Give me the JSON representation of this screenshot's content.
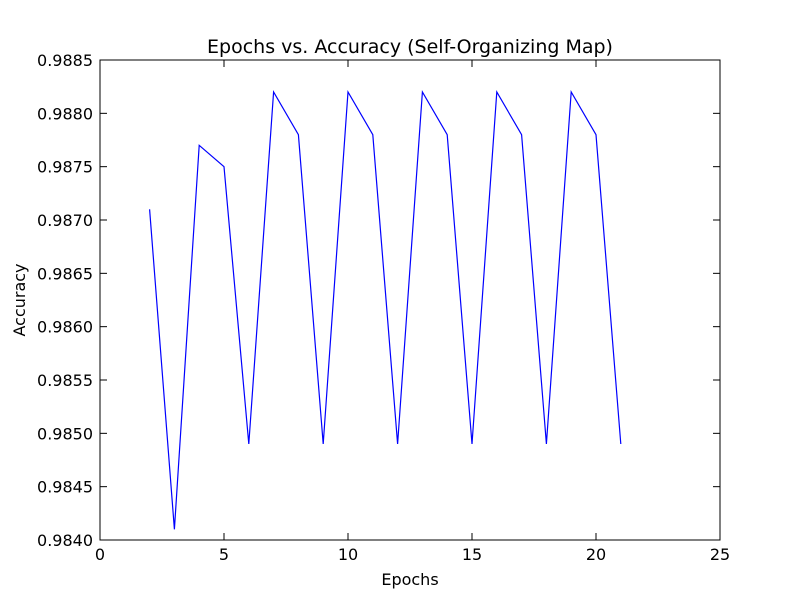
{
  "chart_data": {
    "type": "line",
    "title": "Epochs vs. Accuracy (Self-Organizing Map)",
    "xlabel": "Epochs",
    "ylabel": "Accuracy",
    "xlim": [
      0,
      25
    ],
    "ylim": [
      0.984,
      0.9885
    ],
    "xticks": [
      0,
      5,
      10,
      15,
      20,
      25
    ],
    "yticks": [
      0.984,
      0.9845,
      0.985,
      0.9855,
      0.986,
      0.9865,
      0.987,
      0.9875,
      0.988,
      0.9885
    ],
    "grid": false,
    "series": [
      {
        "color": "#0000ff",
        "x": [
          2,
          3,
          4,
          5,
          6,
          7,
          8,
          9,
          10,
          11,
          12,
          13,
          14,
          15,
          16,
          17,
          18,
          19,
          20,
          21
        ],
        "y": [
          0.9871,
          0.9841,
          0.9877,
          0.9875,
          0.9849,
          0.9882,
          0.9878,
          0.9849,
          0.9882,
          0.9878,
          0.9849,
          0.9882,
          0.9878,
          0.9849,
          0.9882,
          0.9878,
          0.9849,
          0.9882,
          0.9878,
          0.9849
        ]
      }
    ]
  }
}
